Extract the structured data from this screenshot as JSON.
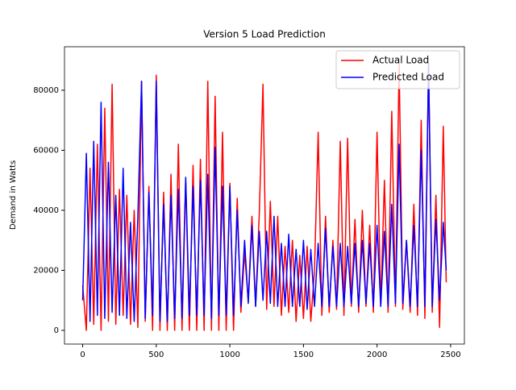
{
  "chart_data": {
    "type": "line",
    "title": "Version 5 Load Prediction",
    "ylabel": "Demand in Watts",
    "x": [
      0,
      25,
      50,
      75,
      100,
      125,
      150,
      175,
      200,
      225,
      250,
      275,
      300,
      325,
      350,
      375,
      400,
      425,
      450,
      475,
      500,
      525,
      550,
      575,
      600,
      625,
      650,
      675,
      700,
      725,
      750,
      775,
      800,
      825,
      850,
      875,
      900,
      925,
      950,
      975,
      1000,
      1025,
      1050,
      1075,
      1100,
      1125,
      1150,
      1175,
      1200,
      1225,
      1250,
      1275,
      1300,
      1325,
      1350,
      1375,
      1400,
      1425,
      1450,
      1475,
      1500,
      1525,
      1550,
      1575,
      1600,
      1625,
      1650,
      1675,
      1700,
      1725,
      1750,
      1775,
      1800,
      1825,
      1850,
      1875,
      1900,
      1925,
      1950,
      1975,
      2000,
      2025,
      2050,
      2075,
      2100,
      2125,
      2150,
      2175,
      2200,
      2225,
      2250,
      2275,
      2300,
      2325,
      2350,
      2375,
      2400,
      2425,
      2450,
      2470
    ],
    "series": [
      {
        "name": "Actual Load",
        "color": "#ff0000",
        "values": [
          15000,
          0,
          54000,
          2000,
          62000,
          0,
          74000,
          3000,
          82000,
          2000,
          47000,
          5000,
          45000,
          2000,
          40000,
          1000,
          83000,
          3000,
          48000,
          0,
          85000,
          0,
          46000,
          0,
          52000,
          0,
          62000,
          0,
          50000,
          0,
          55000,
          0,
          57000,
          0,
          83000,
          0,
          78000,
          0,
          66000,
          0,
          49000,
          0,
          44000,
          6000,
          26000,
          10000,
          38000,
          8000,
          39000,
          82000,
          7000,
          43000,
          8000,
          38000,
          5000,
          28000,
          6000,
          30000,
          3000,
          25000,
          4000,
          28000,
          3000,
          20000,
          66000,
          5000,
          38000,
          6000,
          30000,
          7000,
          63000,
          5000,
          64000,
          8000,
          37000,
          6000,
          40000,
          8000,
          35000,
          6000,
          66000,
          8000,
          50000,
          6000,
          73000,
          8000,
          89000,
          7000,
          30000,
          6000,
          42000,
          5000,
          70000,
          4000,
          88000,
          6000,
          45000,
          1000,
          68000,
          16000
        ]
      },
      {
        "name": "Predicted Load",
        "color": "#0000ff",
        "values": [
          10000,
          59000,
          3000,
          63000,
          5000,
          76000,
          4000,
          56000,
          6000,
          45000,
          5000,
          54000,
          4000,
          36000,
          3000,
          38000,
          83000,
          4000,
          46000,
          5000,
          83000,
          3000,
          42000,
          3000,
          45000,
          4000,
          47000,
          4000,
          51000,
          5000,
          48000,
          5000,
          50000,
          5000,
          52000,
          4000,
          61000,
          5000,
          48000,
          5000,
          48000,
          5000,
          40000,
          8000,
          30000,
          9000,
          35000,
          8000,
          33000,
          10000,
          33000,
          9000,
          38000,
          8000,
          29000,
          8000,
          32000,
          8000,
          27000,
          8000,
          30000,
          7000,
          27000,
          8000,
          29000,
          8000,
          34000,
          8000,
          28000,
          8000,
          29000,
          8000,
          28000,
          9000,
          29000,
          8000,
          30000,
          9000,
          29000,
          8000,
          35000,
          8000,
          33000,
          8000,
          42000,
          9000,
          62000,
          9000,
          30000,
          8000,
          35000,
          8000,
          60000,
          8000,
          89000,
          8000,
          37000,
          10000,
          36000,
          20000
        ]
      }
    ],
    "xlim": [
      -123.5,
      2593.5
    ],
    "xticks": [
      0,
      500,
      1000,
      1500,
      2000,
      2500
    ],
    "ylim": [
      -4560,
      94500
    ],
    "yticks": [
      0,
      20000,
      40000,
      60000,
      80000
    ],
    "legend": "upper right"
  }
}
